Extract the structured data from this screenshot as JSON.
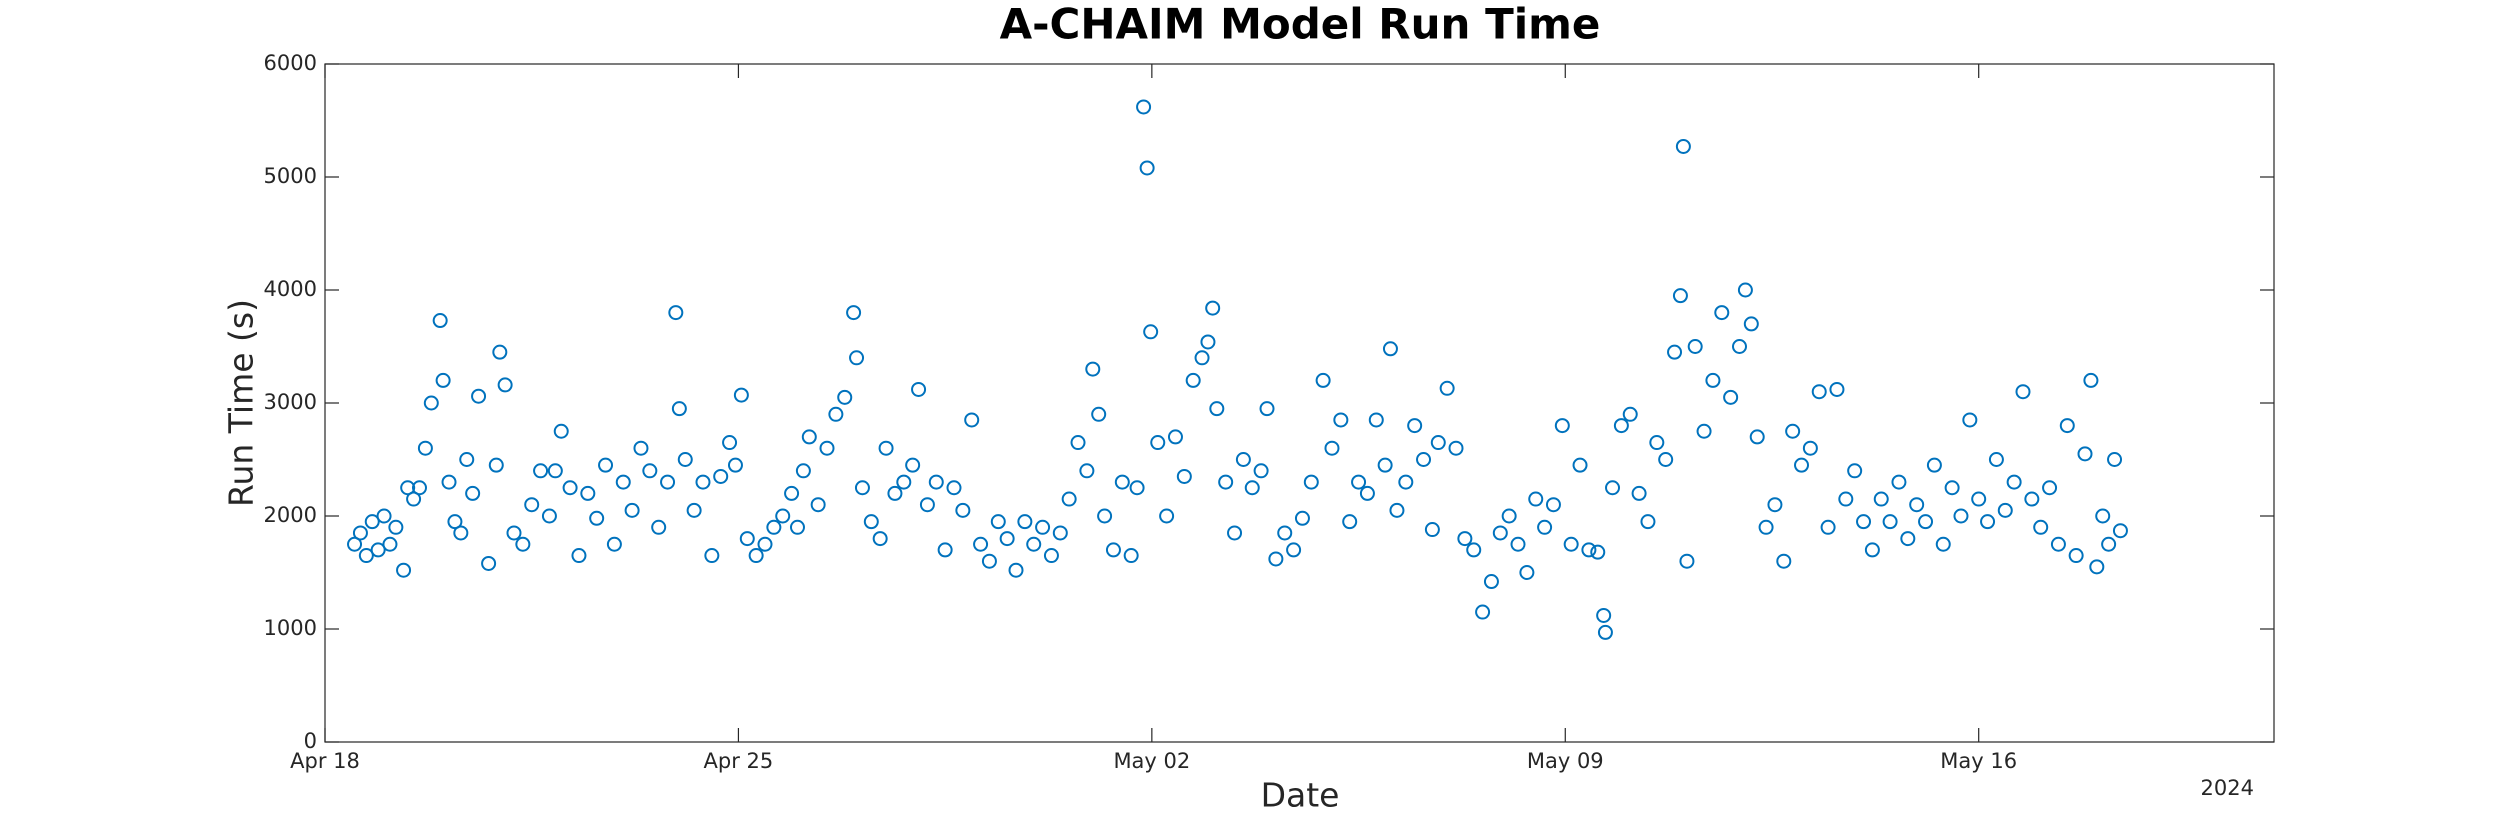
{
  "chart_data": {
    "type": "scatter",
    "title": "A-CHAIM Model Run Time",
    "x_label": "Date",
    "y_label": "Run Time (s)",
    "annotation": "2024",
    "color": "#0072bd",
    "grid": false,
    "xlim": [
      0,
      33
    ],
    "xticks": [
      {
        "value": 0,
        "label": "Apr 18"
      },
      {
        "value": 7,
        "label": "Apr 25"
      },
      {
        "value": 14,
        "label": "May 02"
      },
      {
        "value": 21,
        "label": "May 09"
      },
      {
        "value": 28,
        "label": "May 16"
      }
    ],
    "ylim": [
      0,
      6000
    ],
    "yticks": [
      0,
      1000,
      2000,
      3000,
      4000,
      5000,
      6000
    ],
    "x": [
      0.5,
      0.6,
      0.7,
      0.8,
      0.9,
      1.0,
      1.1,
      1.2,
      1.33,
      1.4,
      1.5,
      1.6,
      1.7,
      1.8,
      1.95,
      2.0,
      2.1,
      2.2,
      2.3,
      2.4,
      2.5,
      2.6,
      2.77,
      2.9,
      2.96,
      3.05,
      3.2,
      3.35,
      3.5,
      3.65,
      3.8,
      3.9,
      4.0,
      4.15,
      4.3,
      4.45,
      4.6,
      4.75,
      4.9,
      5.05,
      5.2,
      5.35,
      5.5,
      5.65,
      5.8,
      5.94,
      6.0,
      6.1,
      6.25,
      6.4,
      6.55,
      6.7,
      6.85,
      6.95,
      7.05,
      7.15,
      7.3,
      7.45,
      7.6,
      7.75,
      7.9,
      8.0,
      8.1,
      8.2,
      8.35,
      8.5,
      8.65,
      8.8,
      8.95,
      9.0,
      9.1,
      9.25,
      9.4,
      9.5,
      9.65,
      9.8,
      9.95,
      10.05,
      10.2,
      10.35,
      10.5,
      10.65,
      10.8,
      10.95,
      11.1,
      11.25,
      11.4,
      11.55,
      11.7,
      11.85,
      12.0,
      12.15,
      12.3,
      12.45,
      12.6,
      12.75,
      12.9,
      13.0,
      13.1,
      13.2,
      13.35,
      13.5,
      13.65,
      13.75,
      13.86,
      13.92,
      13.98,
      14.1,
      14.25,
      14.4,
      14.55,
      14.7,
      14.85,
      14.95,
      15.03,
      15.1,
      15.25,
      15.4,
      15.55,
      15.7,
      15.85,
      15.95,
      16.1,
      16.25,
      16.4,
      16.55,
      16.7,
      16.9,
      17.05,
      17.2,
      17.35,
      17.5,
      17.65,
      17.8,
      17.95,
      18.04,
      18.15,
      18.3,
      18.45,
      18.6,
      18.75,
      18.85,
      19.0,
      19.15,
      19.3,
      19.45,
      19.6,
      19.75,
      19.9,
      20.05,
      20.2,
      20.35,
      20.5,
      20.65,
      20.8,
      20.95,
      21.1,
      21.25,
      21.4,
      21.55,
      21.65,
      21.68,
      21.8,
      21.95,
      22.1,
      22.25,
      22.4,
      22.55,
      22.7,
      22.85,
      22.95,
      23.0,
      23.06,
      23.2,
      23.35,
      23.5,
      23.65,
      23.8,
      23.95,
      24.05,
      24.15,
      24.25,
      24.4,
      24.55,
      24.7,
      24.85,
      25.0,
      25.15,
      25.3,
      25.45,
      25.6,
      25.75,
      25.9,
      26.05,
      26.2,
      26.35,
      26.5,
      26.65,
      26.8,
      26.95,
      27.1,
      27.25,
      27.4,
      27.55,
      27.7,
      27.85,
      28.0,
      28.15,
      28.3,
      28.45,
      28.6,
      28.75,
      28.9,
      29.05,
      29.2,
      29.35,
      29.5,
      29.65,
      29.8,
      29.9,
      30.0,
      30.1,
      30.2,
      30.3,
      30.4
    ],
    "values": [
      1750,
      1850,
      1650,
      1950,
      1700,
      2000,
      1750,
      1900,
      1520,
      2250,
      2150,
      2250,
      2600,
      3000,
      3730,
      3200,
      2300,
      1950,
      1850,
      2500,
      2200,
      3060,
      1580,
      2450,
      3450,
      3160,
      1850,
      1750,
      2100,
      2400,
      2000,
      2400,
      2750,
      2250,
      1650,
      2200,
      1980,
      2450,
      1750,
      2300,
      2050,
      2600,
      2400,
      1900,
      2300,
      3800,
      2950,
      2500,
      2050,
      2300,
      1650,
      2350,
      2650,
      2450,
      3070,
      1800,
      1650,
      1750,
      1900,
      2000,
      2200,
      1900,
      2400,
      2700,
      2100,
      2600,
      2900,
      3050,
      3800,
      3400,
      2250,
      1950,
      1800,
      2600,
      2200,
      2300,
      2450,
      3120,
      2100,
      2300,
      1700,
      2250,
      2050,
      2850,
      1750,
      1600,
      1950,
      1800,
      1520,
      1950,
      1750,
      1900,
      1650,
      1850,
      2150,
      2650,
      2400,
      3300,
      2900,
      2000,
      1700,
      2300,
      1650,
      2250,
      5620,
      5080,
      3630,
      2650,
      2000,
      2700,
      2350,
      3200,
      3400,
      3540,
      3840,
      2950,
      2300,
      1850,
      2500,
      2250,
      2400,
      2950,
      1620,
      1850,
      1700,
      1980,
      2300,
      3200,
      2600,
      2850,
      1950,
      2300,
      2200,
      2850,
      2450,
      3480,
      2050,
      2300,
      2800,
      2500,
      1880,
      2650,
      3130,
      2600,
      1800,
      1700,
      1150,
      1420,
      1850,
      2000,
      1750,
      1500,
      2150,
      1900,
      2100,
      2800,
      1750,
      2450,
      1700,
      1680,
      1120,
      970,
      2250,
      2800,
      2900,
      2200,
      1950,
      2650,
      2500,
      3450,
      3950,
      5270,
      1600,
      3500,
      2750,
      3200,
      3800,
      3050,
      3500,
      4000,
      3700,
      2700,
      1900,
      2100,
      1600,
      2750,
      2450,
      2600,
      3100,
      1900,
      3120,
      2150,
      2400,
      1950,
      1700,
      2150,
      1950,
      2300,
      1800,
      2100,
      1950,
      2450,
      1750,
      2250,
      2000,
      2850,
      2150,
      1950,
      2500,
      2050,
      2300,
      3100,
      2150,
      1900,
      2250,
      1750,
      2800,
      1650,
      2550,
      3200,
      1550,
      2000,
      1750,
      2500,
      1870
    ]
  }
}
